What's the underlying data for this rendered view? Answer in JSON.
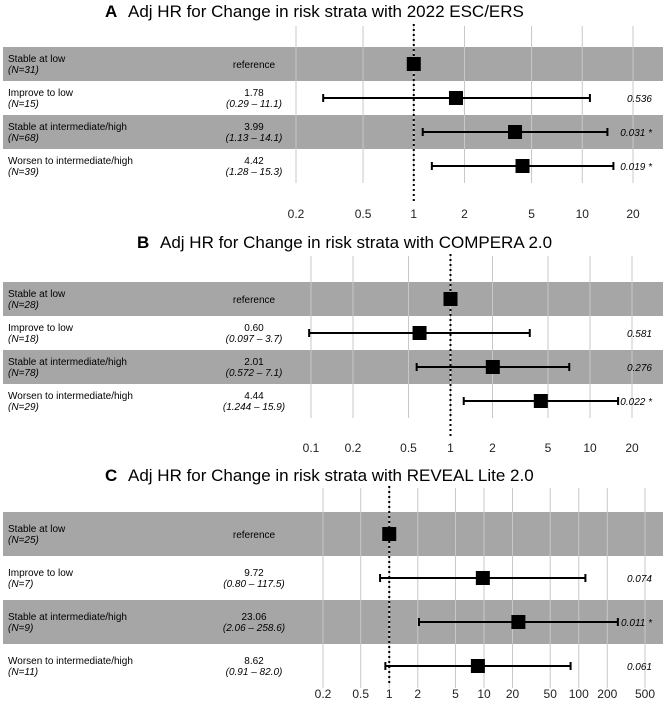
{
  "chart_data": [
    {
      "type": "forest",
      "panel": "A",
      "title": "Adj HR for Change in risk strata with 2022 ESC/ERS",
      "xscale": "log",
      "xticks": [
        "0.2",
        "0.5",
        "1",
        "2",
        "5",
        "10",
        "20"
      ],
      "xlim": [
        0.15,
        28
      ],
      "reference_line": 1,
      "rows": [
        {
          "label": "Stable at low",
          "n": "(N=31)",
          "hr_text": "reference",
          "ci_text": "",
          "p_text": "",
          "hr": 1,
          "lo": null,
          "hi": null
        },
        {
          "label": "Improve to low",
          "n": "(N=15)",
          "hr_text": "1.78",
          "ci_text": "(0.29 – 11.1)",
          "p_text": "0.536",
          "hr": 1.78,
          "lo": 0.29,
          "hi": 11.1
        },
        {
          "label": "Stable at intermediate/high",
          "n": "(N=68)",
          "hr_text": "3.99",
          "ci_text": "(1.13 – 14.1)",
          "p_text": "0.031 *",
          "hr": 3.99,
          "lo": 1.13,
          "hi": 14.1
        },
        {
          "label": "Worsen to intermediate/high",
          "n": "(N=39)",
          "hr_text": "4.42",
          "ci_text": "(1.28 – 15.3)",
          "p_text": "0.019 *",
          "hr": 4.42,
          "lo": 1.28,
          "hi": 15.3
        }
      ]
    },
    {
      "type": "forest",
      "panel": "B",
      "title": "Adj HR for Change in risk strata with COMPERA 2.0",
      "xscale": "log",
      "xticks": [
        "0.1",
        "0.2",
        "0.5",
        "1",
        "2",
        "5",
        "10",
        "20"
      ],
      "xlim": [
        0.075,
        28
      ],
      "reference_line": 1,
      "rows": [
        {
          "label": "Stable at low",
          "n": "(N=28)",
          "hr_text": "reference",
          "ci_text": "",
          "p_text": "",
          "hr": 1,
          "lo": null,
          "hi": null
        },
        {
          "label": "Improve to low",
          "n": "(N=18)",
          "hr_text": "0.60",
          "ci_text": "(0.097 –  3.7)",
          "p_text": "0.581",
          "hr": 0.6,
          "lo": 0.097,
          "hi": 3.7
        },
        {
          "label": "Stable at intermediate/high",
          "n": "(N=78)",
          "hr_text": "2.01",
          "ci_text": "(0.572 –  7.1)",
          "p_text": "0.276",
          "hr": 2.01,
          "lo": 0.572,
          "hi": 7.1
        },
        {
          "label": "Worsen to intermediate/high",
          "n": "(N=29)",
          "hr_text": "4.44",
          "ci_text": "(1.244 – 15.9)",
          "p_text": "0.022 *",
          "hr": 4.44,
          "lo": 1.244,
          "hi": 15.9
        }
      ]
    },
    {
      "type": "forest",
      "panel": "C",
      "title": "Adj HR for Change in risk strata with REVEAL Lite 2.0",
      "xscale": "log",
      "xticks": [
        "0.2",
        "0.5",
        "1",
        "2",
        "5",
        "10",
        "20",
        "50",
        "100",
        "200",
        "500"
      ],
      "xlim": [
        0.15,
        650
      ],
      "reference_line": 1,
      "rows": [
        {
          "label": "Stable at low",
          "n": "(N=25)",
          "hr_text": "reference",
          "ci_text": "",
          "p_text": "",
          "hr": 1,
          "lo": null,
          "hi": null
        },
        {
          "label": "Improve to low",
          "n": "(N=7)",
          "hr_text": "9.72",
          "ci_text": "(0.80 – 117.5)",
          "p_text": "0.074",
          "hr": 9.72,
          "lo": 0.8,
          "hi": 117.5
        },
        {
          "label": "Stable at intermediate/high",
          "n": "(N=9)",
          "hr_text": "23.06",
          "ci_text": "(2.06 – 258.6)",
          "p_text": "0.011 *",
          "hr": 23.06,
          "lo": 2.06,
          "hi": 258.6
        },
        {
          "label": "Worsen to intermediate/high",
          "n": "(N=11)",
          "hr_text": "8.62",
          "ci_text": "(0.91 –  82.0)",
          "p_text": "0.061",
          "hr": 8.62,
          "lo": 0.91,
          "hi": 82.0
        }
      ]
    }
  ]
}
